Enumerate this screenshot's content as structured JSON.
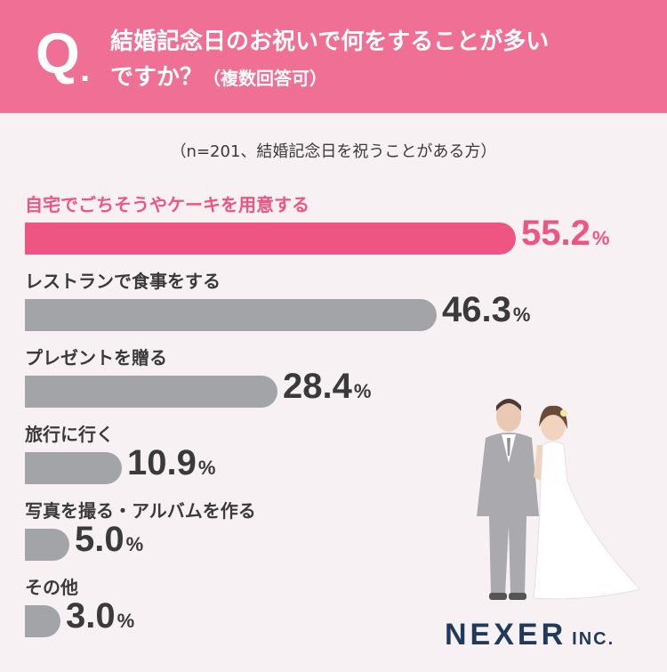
{
  "header": {
    "q_mark": "Q",
    "q_dot": ".",
    "question_line1": "結婚記念日のお祝いで何をすることが多い",
    "question_line2": "ですか？",
    "question_note": "（複数回答可）"
  },
  "subnote": "（n=201、結婚記念日を祝うことがある方）",
  "brand": {
    "logo_main": "NEXER",
    "logo_suffix": "INC."
  },
  "colors": {
    "accent": "#ee5583",
    "bar_default": "#a3a4a8",
    "header_bg": "#ef7094"
  },
  "chart_data": {
    "type": "bar",
    "orientation": "horizontal",
    "unit": "%",
    "categories": [
      "自宅でごちそうやケーキを用意する",
      "レストランで食事をする",
      "プレゼントを贈る",
      "旅行に行く",
      "写真を撮る・アルバムを作る",
      "その他"
    ],
    "values": [
      55.2,
      46.3,
      28.4,
      10.9,
      5.0,
      3.0
    ],
    "value_labels": [
      "55.2",
      "46.3",
      "28.4",
      "10.9",
      "5.0",
      "3.0"
    ],
    "highlight_index": 0,
    "xlim": [
      0,
      100
    ],
    "grid": false
  }
}
